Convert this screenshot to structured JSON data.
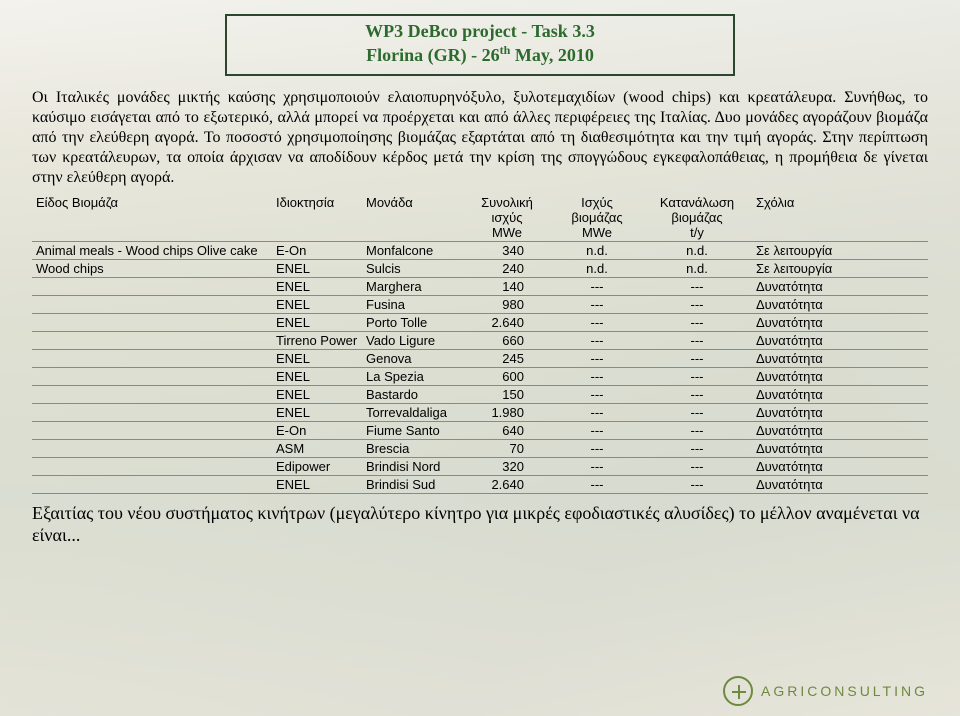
{
  "header": {
    "line1": "WP3 DeBco project - Task 3.3",
    "line2_pre": "Florina (GR) - 26",
    "line2_sup": "th",
    "line2_post": " May, 2010"
  },
  "paragraph": "Οι Ιταλικές μονάδες μικτής καύσης χρησιμοποιούν ελαιοπυρηνόξυλο, ξυλοτεμαχιδίων (wood chips) και κρεατάλευρα. Συνήθως, το καύσιμο εισάγεται από το εξωτερικό, αλλά μπορεί να προέρχεται και από άλλες περιφέρειες της Ιταλίας. Δυο μονάδες αγοράζουν βιομάζα από την ελεύθερη αγορά. Το ποσοστό χρησιμοποίησης βιομάζας εξαρτάται από τη διαθεσιμότητα και την τιμή αγοράς. Στην περίπτωση των κρεατάλευρων, τα οποία άρχισαν να αποδίδουν κέρδος μετά την κρίση της σπογγώδους εγκεφαλοπάθειας, η προμήθεια δε γίνεται στην ελεύθερη αγορά.",
  "table": {
    "columns": [
      {
        "key": "biomass",
        "label": "Είδος Βιομάζα",
        "align": "left"
      },
      {
        "key": "owner",
        "label": "Ιδιοκτησία",
        "align": "left"
      },
      {
        "key": "unit",
        "label": "Μονάδα",
        "align": "left"
      },
      {
        "key": "power",
        "label": "Συνολική\nισχύς\nMWe",
        "align": "center"
      },
      {
        "key": "bio_pw",
        "label": "Ισχύς\nβιομάζας\nMWe",
        "align": "center"
      },
      {
        "key": "consump",
        "label": "Κατανάλωση\nβιομάζας\nt/y",
        "align": "center"
      },
      {
        "key": "notes",
        "label": "Σχόλια",
        "align": "left"
      }
    ],
    "rows": [
      {
        "biomass": "Animal meals - Wood chips Olive cake",
        "owner": "E-On",
        "unit": "Monfalcone",
        "power": "340",
        "bio_pw": "n.d.",
        "consump": "n.d.",
        "notes": "Σε λειτουργία"
      },
      {
        "biomass": "Wood chips",
        "owner": "ENEL",
        "unit": "Sulcis",
        "power": "240",
        "bio_pw": "n.d.",
        "consump": "n.d.",
        "notes": "Σε λειτουργία"
      },
      {
        "biomass": "",
        "owner": "ENEL",
        "unit": "Marghera",
        "power": "140",
        "bio_pw": "---",
        "consump": "---",
        "notes": "Δυνατότητα"
      },
      {
        "biomass": "",
        "owner": "ENEL",
        "unit": "Fusina",
        "power": "980",
        "bio_pw": "---",
        "consump": "---",
        "notes": "Δυνατότητα"
      },
      {
        "biomass": "",
        "owner": "ENEL",
        "unit": "Porto Tolle",
        "power": "2.640",
        "bio_pw": "---",
        "consump": "---",
        "notes": "Δυνατότητα"
      },
      {
        "biomass": "",
        "owner": "Tirreno Power",
        "unit": "Vado Ligure",
        "power": "660",
        "bio_pw": "---",
        "consump": "---",
        "notes": "Δυνατότητα"
      },
      {
        "biomass": "",
        "owner": "ENEL",
        "unit": "Genova",
        "power": "245",
        "bio_pw": "---",
        "consump": "---",
        "notes": "Δυνατότητα"
      },
      {
        "biomass": "",
        "owner": "ENEL",
        "unit": "La Spezia",
        "power": "600",
        "bio_pw": "---",
        "consump": "---",
        "notes": "Δυνατότητα"
      },
      {
        "biomass": "",
        "owner": "ENEL",
        "unit": "Bastardo",
        "power": "150",
        "bio_pw": "---",
        "consump": "---",
        "notes": "Δυνατότητα"
      },
      {
        "biomass": "",
        "owner": "ENEL",
        "unit": "Torrevaldaliga",
        "power": "1.980",
        "bio_pw": "---",
        "consump": "---",
        "notes": "Δυνατότητα"
      },
      {
        "biomass": "",
        "owner": "E-On",
        "unit": "Fiume Santo",
        "power": "640",
        "bio_pw": "---",
        "consump": "---",
        "notes": "Δυνατότητα"
      },
      {
        "biomass": "",
        "owner": "ASM",
        "unit": "Brescia",
        "power": "70",
        "bio_pw": "---",
        "consump": "---",
        "notes": "Δυνατότητα"
      },
      {
        "biomass": "",
        "owner": "Edipower",
        "unit": "Brindisi Nord",
        "power": "320",
        "bio_pw": "---",
        "consump": "---",
        "notes": "Δυνατότητα"
      },
      {
        "biomass": "",
        "owner": "ENEL",
        "unit": "Brindisi Sud",
        "power": "2.640",
        "bio_pw": "---",
        "consump": "---",
        "notes": "Δυνατότητα"
      }
    ],
    "col_widths": [
      "240px",
      "90px",
      "100px",
      "90px",
      "90px",
      "110px",
      "auto"
    ]
  },
  "closing": "Εξαιτίας του νέου συστήματος κινήτρων (μεγαλύτερο κίνητρο για μικρές εφοδιαστικές αλυσίδες) το μέλλον αναμένεται να είναι...",
  "footer": {
    "brand": "AGRICONSULTING"
  },
  "colors": {
    "title_text": "#2d6a2d",
    "title_border": "#2d472f",
    "table_border": "#8a8f6a",
    "brand": "#6e8a3e"
  },
  "fontsizes": {
    "title": 18,
    "body": 16,
    "table": 13,
    "closing": 18,
    "brand": 14
  }
}
